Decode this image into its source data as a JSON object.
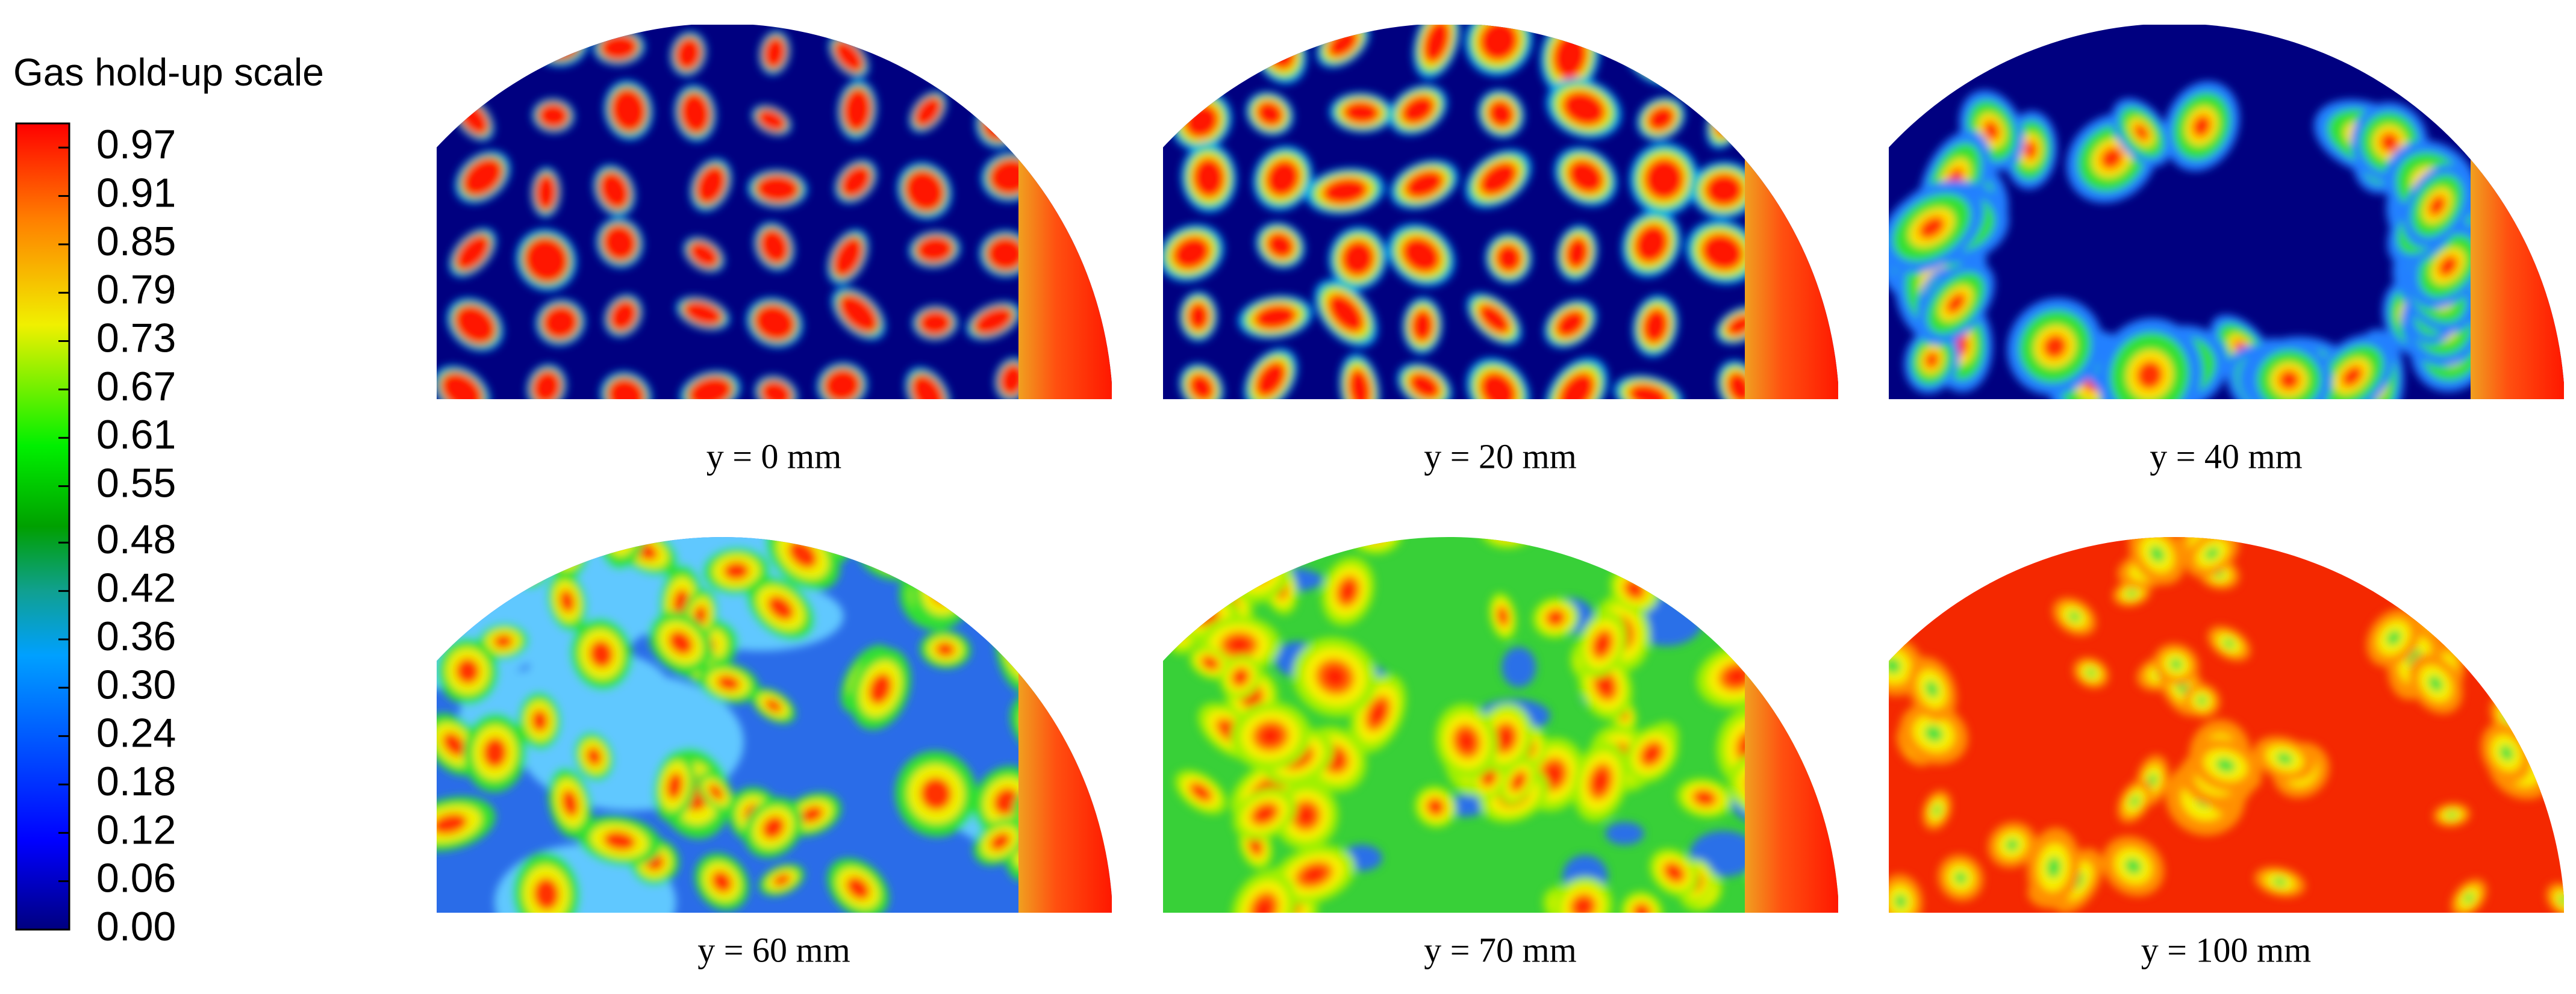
{
  "colorbar": {
    "title": "Gas hold-up scale",
    "range": [
      0,
      1
    ],
    "ticks": [
      {
        "value": 0,
        "label": "0.00"
      },
      0.06,
      0.12,
      0.18,
      0.24,
      {
        "value": 0.3,
        "label": "0.30"
      },
      0.36,
      0.42,
      0.48,
      0.55,
      0.61,
      0.67,
      0.73,
      0.79,
      0.85,
      0.91,
      0.97
    ]
  },
  "panels": [
    {
      "label": "y = 0 mm"
    },
    {
      "label": "y = 20 mm"
    },
    {
      "label": "y = 40 mm"
    },
    {
      "label": "y = 60 mm"
    },
    {
      "label": "y = 70 mm"
    },
    {
      "label": "y = 100 mm"
    }
  ]
}
